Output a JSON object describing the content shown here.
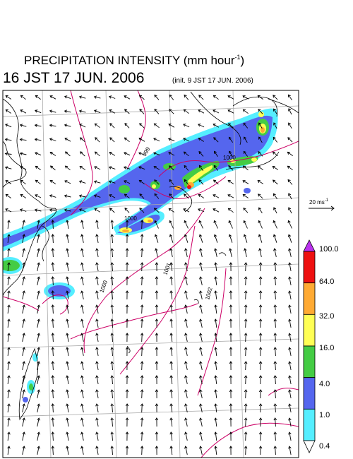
{
  "title": {
    "text": "PRECIPITATION INTENSITY (mm hour",
    "sup": "-1",
    "close": ")"
  },
  "valid_time": "16 JST 17 JUN. 2006",
  "init_time": "(init. 9 JST 17 JUN. 2006)",
  "wind_reference": {
    "label": "20 ms",
    "sup": "-1"
  },
  "colorbar": {
    "ticks": [
      "0.4",
      "1.0",
      "4.0",
      "16.0",
      "32.0",
      "64.0",
      "100.0"
    ],
    "colors": [
      "#55eeff",
      "#5566ee",
      "#44cc44",
      "#ffff55",
      "#ffaa33",
      "#ee1111"
    ],
    "under_color": "#ffffff",
    "over_color": "#bb33ee"
  },
  "pressure_contour_labels": [
    "999",
    "1000",
    "1000",
    "1000",
    "1001",
    "1002"
  ],
  "colors": {
    "contour": "#cc0066",
    "grid": "#aaaaaa",
    "coast": "#000000"
  }
}
